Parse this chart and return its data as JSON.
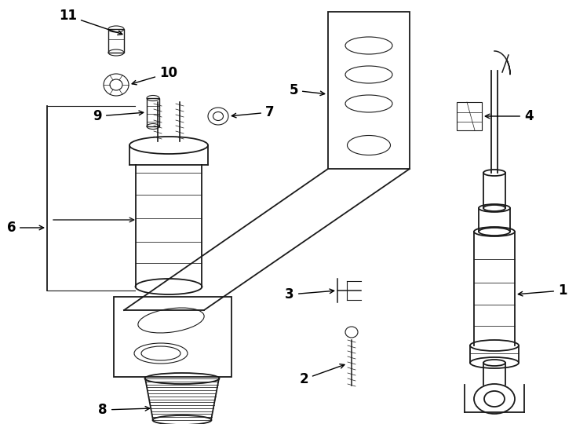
{
  "bg_color": "#ffffff",
  "line_color": "#1a1a1a",
  "lw": 1.3,
  "tlw": 0.8,
  "fs": 12
}
